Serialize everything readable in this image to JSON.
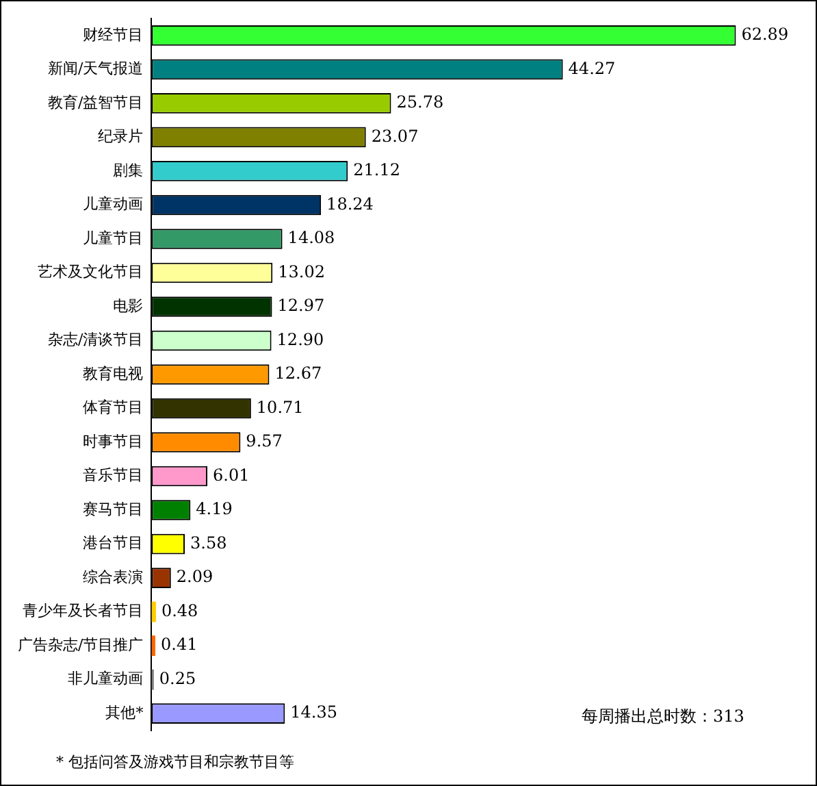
{
  "chart_data": {
    "type": "bar",
    "orientation": "horizontal",
    "categories": [
      "财经节目",
      "新闻/天气报道",
      "教育/益智节目",
      "纪录片",
      "剧集",
      "儿童动画",
      "儿童节目",
      "艺术及文化节目",
      "电影",
      "杂志/清谈节目",
      "教育电视",
      "体育节目",
      "时事节目",
      "音乐节目",
      "赛马节目",
      "港台节目",
      "综合表演",
      "青少年及长者节目",
      "广告杂志/节目推广",
      "非儿童动画",
      "其他*"
    ],
    "values": [
      62.89,
      44.27,
      25.78,
      23.07,
      21.12,
      18.24,
      14.08,
      13.02,
      12.97,
      12.9,
      12.67,
      10.71,
      9.57,
      6.01,
      4.19,
      3.58,
      2.09,
      0.48,
      0.41,
      0.25,
      14.35
    ],
    "value_labels": [
      "62.89",
      "44.27",
      "25.78",
      "23.07",
      "21.12",
      "18.24",
      "14.08",
      "13.02",
      "12.97",
      "12.90",
      "12.67",
      "10.71",
      "9.57",
      "6.01",
      "4.19",
      "3.58",
      "2.09",
      "0.48",
      "0.41",
      "0.25",
      "14.35"
    ],
    "colors": [
      "#33ff33",
      "#008080",
      "#99cc00",
      "#808000",
      "#33cccc",
      "#003366",
      "#339966",
      "#ffff99",
      "#003300",
      "#ccffcc",
      "#ff9900",
      "#333300",
      "#ff8c00",
      "#ff99cc",
      "#008000",
      "#ffff00",
      "#993300",
      "#ffcc00",
      "#ff6600",
      "#808080",
      "#9999ff"
    ],
    "legend": false,
    "tick_labels": "y",
    "annotations": [
      "每周播出总时数：313",
      "* 包括问答及游戏节目和宗教节目等"
    ]
  }
}
